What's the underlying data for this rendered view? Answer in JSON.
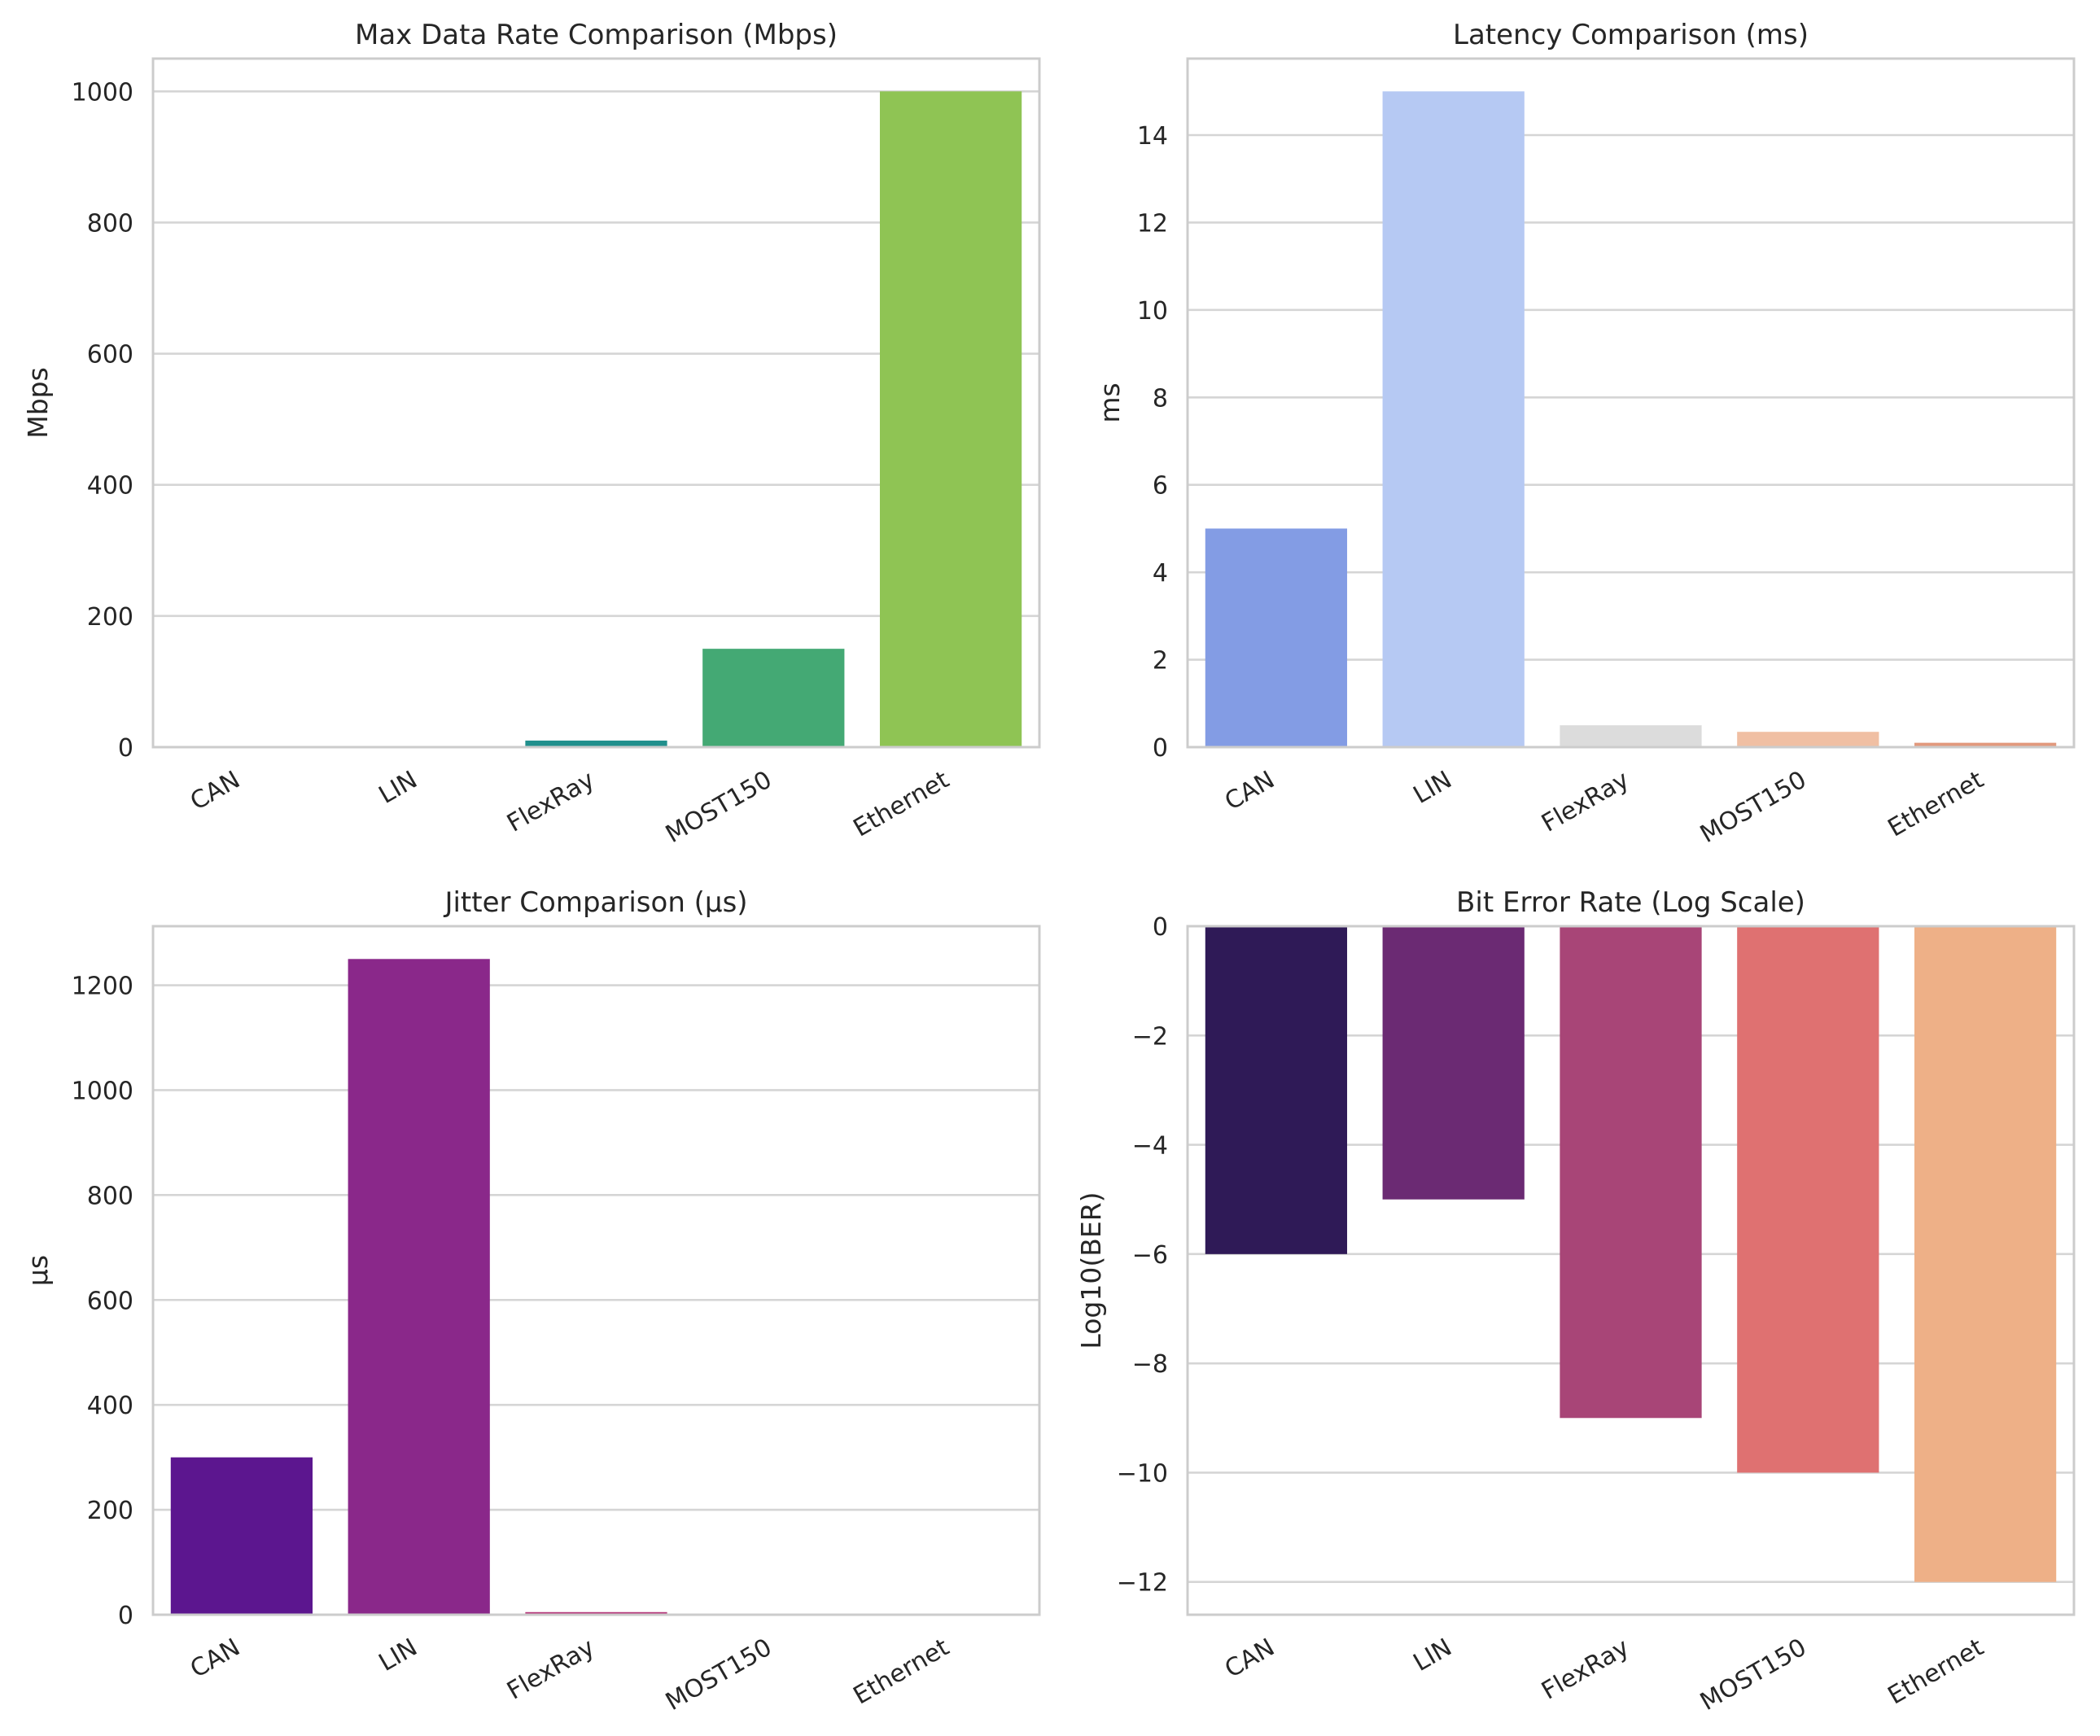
{
  "chart_data": [
    {
      "type": "bar",
      "title": "Max Data Rate Comparison (Mbps)",
      "xlabel": "",
      "ylabel": "Mbps",
      "categories": [
        "CAN",
        "LIN",
        "FlexRay",
        "MOST150",
        "Ethernet"
      ],
      "values": [
        1,
        0.02,
        10,
        150,
        1000
      ],
      "ylim": [
        0,
        1050
      ],
      "yticks": [
        0,
        200,
        400,
        600,
        800,
        1000
      ],
      "ytick_labels": [
        "0",
        "200",
        "400",
        "600",
        "800",
        "1000"
      ],
      "colors": [
        "#472d7b",
        "#3b528b",
        "#21908d",
        "#44a974",
        "#8fc454"
      ],
      "grid": true,
      "legend": "none"
    },
    {
      "type": "bar",
      "title": "Latency Comparison (ms)",
      "xlabel": "",
      "ylabel": "ms",
      "categories": [
        "CAN",
        "LIN",
        "FlexRay",
        "MOST150",
        "Ethernet"
      ],
      "values": [
        5,
        15,
        0.5,
        0.35,
        0.1
      ],
      "ylim": [
        0,
        15.75
      ],
      "yticks": [
        0,
        2,
        4,
        6,
        8,
        10,
        12,
        14
      ],
      "ytick_labels": [
        "0",
        "2",
        "4",
        "6",
        "8",
        "10",
        "12",
        "14"
      ],
      "colors": [
        "#839ce4",
        "#b6c9f3",
        "#dcdcdc",
        "#f0bfa3",
        "#e2997d"
      ],
      "grid": true,
      "legend": "none"
    },
    {
      "type": "bar",
      "title": "Jitter Comparison (µs)",
      "xlabel": "",
      "ylabel": "µs",
      "categories": [
        "CAN",
        "LIN",
        "FlexRay",
        "MOST150",
        "Ethernet"
      ],
      "values": [
        300,
        1250,
        5,
        2,
        1
      ],
      "ylim": [
        0,
        1312.5
      ],
      "yticks": [
        0,
        200,
        400,
        600,
        800,
        1000,
        1200
      ],
      "ytick_labels": [
        "0",
        "200",
        "400",
        "600",
        "800",
        "1000",
        "1200"
      ],
      "colors": [
        "#5c168f",
        "#8a288a",
        "#b5367a",
        "#d8516a",
        "#ec7356"
      ],
      "grid": true,
      "legend": "none"
    },
    {
      "type": "bar",
      "title": "Bit Error Rate (Log Scale)",
      "xlabel": "",
      "ylabel": "Log10(BER)",
      "categories": [
        "CAN",
        "LIN",
        "FlexRay",
        "MOST150",
        "Ethernet"
      ],
      "values": [
        -6,
        -5,
        -9,
        -10,
        -12
      ],
      "ylim": [
        -12.6,
        0
      ],
      "yticks": [
        0,
        -2,
        -4,
        -6,
        -8,
        -10,
        -12
      ],
      "ytick_labels": [
        "0",
        "−2",
        "−4",
        "−6",
        "−8",
        "−10",
        "−12"
      ],
      "colors": [
        "#2f1a57",
        "#6b2a73",
        "#a84577",
        "#df7171",
        "#eeb087"
      ],
      "grid": true,
      "legend": "none"
    }
  ]
}
